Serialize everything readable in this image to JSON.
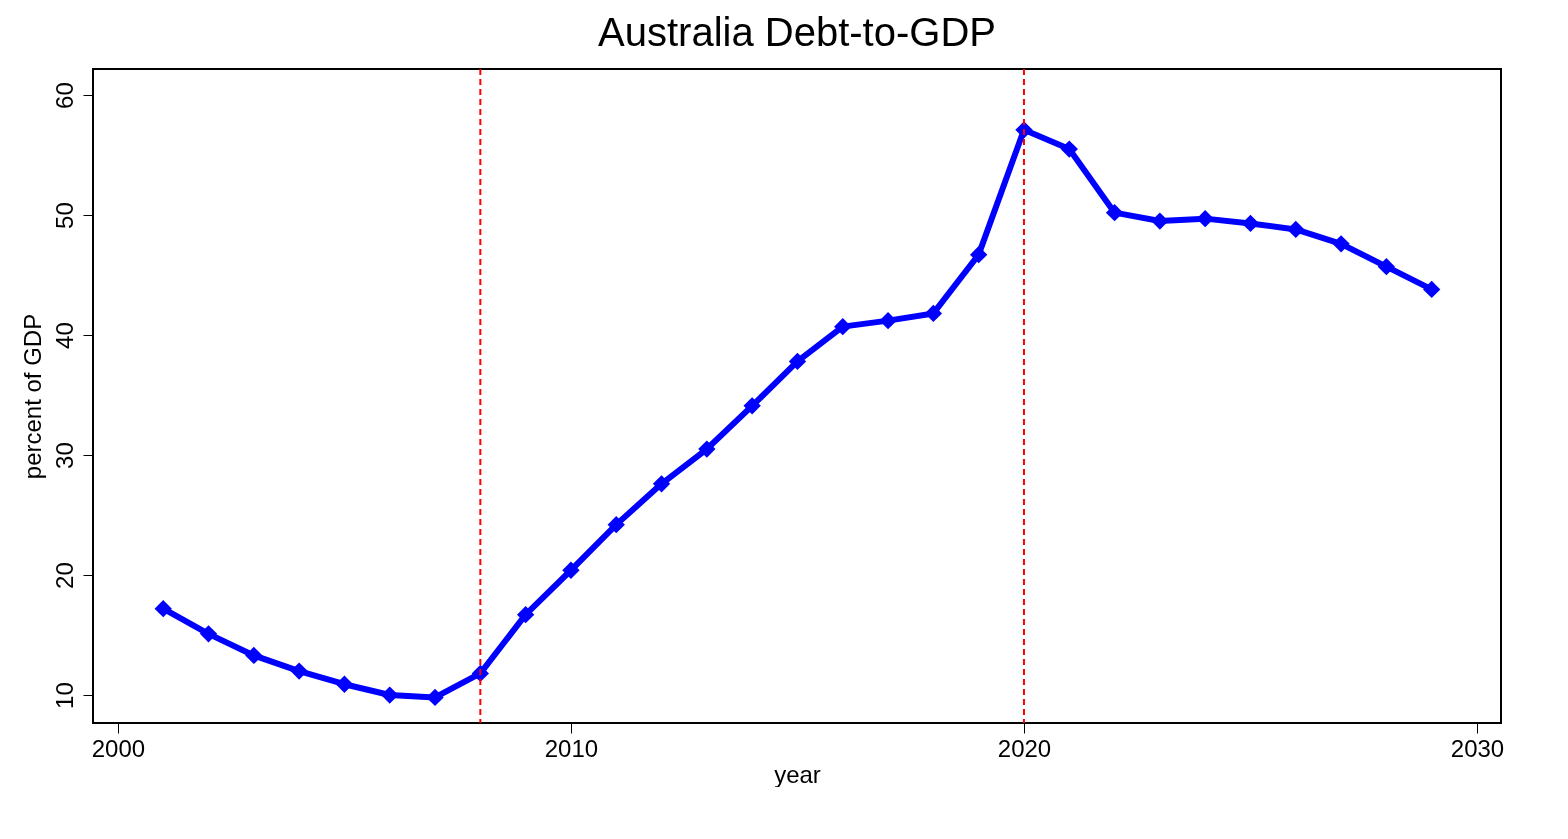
{
  "chart_data": {
    "type": "line",
    "title": "Australia Debt-to-GDP",
    "xlabel": "year",
    "ylabel": "percent of GDP",
    "x": [
      2001,
      2002,
      2003,
      2004,
      2005,
      2006,
      2007,
      2008,
      2009,
      2010,
      2011,
      2012,
      2013,
      2014,
      2015,
      2016,
      2017,
      2018,
      2019,
      2020,
      2021,
      2022,
      2023,
      2024,
      2025,
      2026,
      2027,
      2028,
      2029
    ],
    "series": [
      {
        "color": "#0000ff",
        "values": [
          17.2,
          15.1,
          13.3,
          12.0,
          10.9,
          10.0,
          9.8,
          11.8,
          16.7,
          20.4,
          24.2,
          27.6,
          30.5,
          34.1,
          37.8,
          40.7,
          41.2,
          41.8,
          46.7,
          57.1,
          55.5,
          50.2,
          49.5,
          49.7,
          49.3,
          48.8,
          47.6,
          45.7,
          43.8
        ]
      }
    ],
    "xlim": [
      1999.45,
      2030.53
    ],
    "ylim": [
      7.67,
      62.17
    ],
    "xticks": [
      2000,
      2010,
      2020,
      2030
    ],
    "yticks": [
      10,
      20,
      30,
      40,
      50,
      60
    ],
    "ref_lines": [
      {
        "axis": "x",
        "value": 2008,
        "color": "#ff0000",
        "line_style": "dashed"
      },
      {
        "axis": "x",
        "value": 2020,
        "color": "#ff0000",
        "line_style": "dashed"
      }
    ],
    "marker": "diamond",
    "line_style": "solid",
    "grid": false
  }
}
